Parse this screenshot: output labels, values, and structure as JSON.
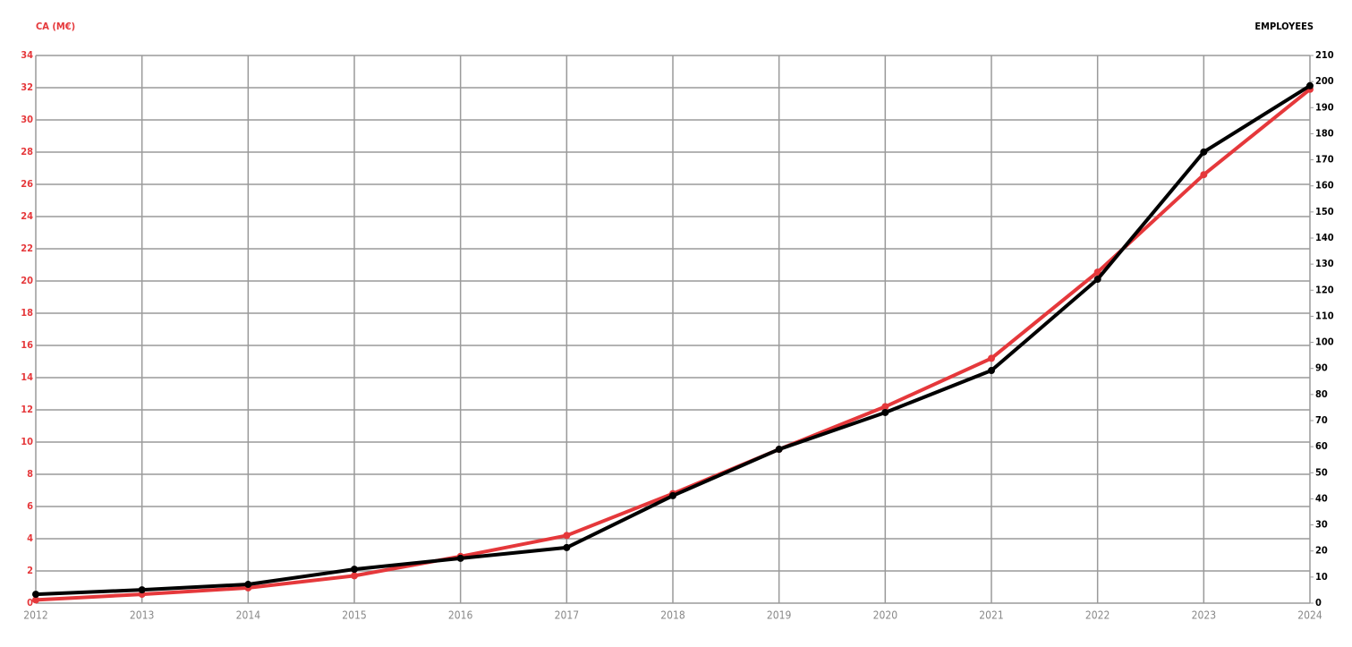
{
  "chart_data": {
    "type": "line",
    "y_label": "CA (M€)",
    "y2_label": "EMPLOYEES",
    "x": [
      2012,
      2013,
      2014,
      2015,
      2016,
      2017,
      2018,
      2019,
      2020,
      2021,
      2022,
      2023,
      2024
    ],
    "xlim": [
      2012,
      2024
    ],
    "xticks": [
      2012,
      2013,
      2014,
      2015,
      2016,
      2017,
      2018,
      2019,
      2020,
      2021,
      2022,
      2023,
      2024
    ],
    "ylim": [
      0,
      34
    ],
    "yticks": [
      0,
      2,
      4,
      6,
      8,
      10,
      12,
      14,
      16,
      18,
      20,
      22,
      24,
      26,
      28,
      30,
      32,
      34
    ],
    "y2lim": [
      0,
      210
    ],
    "y2ticks": [
      0,
      10,
      20,
      30,
      40,
      50,
      60,
      70,
      80,
      90,
      100,
      110,
      120,
      130,
      140,
      150,
      160,
      170,
      180,
      190,
      200,
      210
    ],
    "grid": true,
    "series": [
      {
        "color": "#e5383b",
        "values": [
          0.2,
          0.55,
          0.95,
          1.7,
          2.9,
          4.2,
          6.8,
          9.55,
          12.2,
          15.2,
          20.55,
          26.6,
          31.9
        ]
      },
      {
        "color": "#000000",
        "axis": "y2",
        "values": [
          3.4,
          5.1,
          7.2,
          13,
          17.2,
          21.3,
          41.2,
          59,
          73.1,
          89.2,
          124.2,
          173,
          198.4
        ]
      }
    ]
  }
}
